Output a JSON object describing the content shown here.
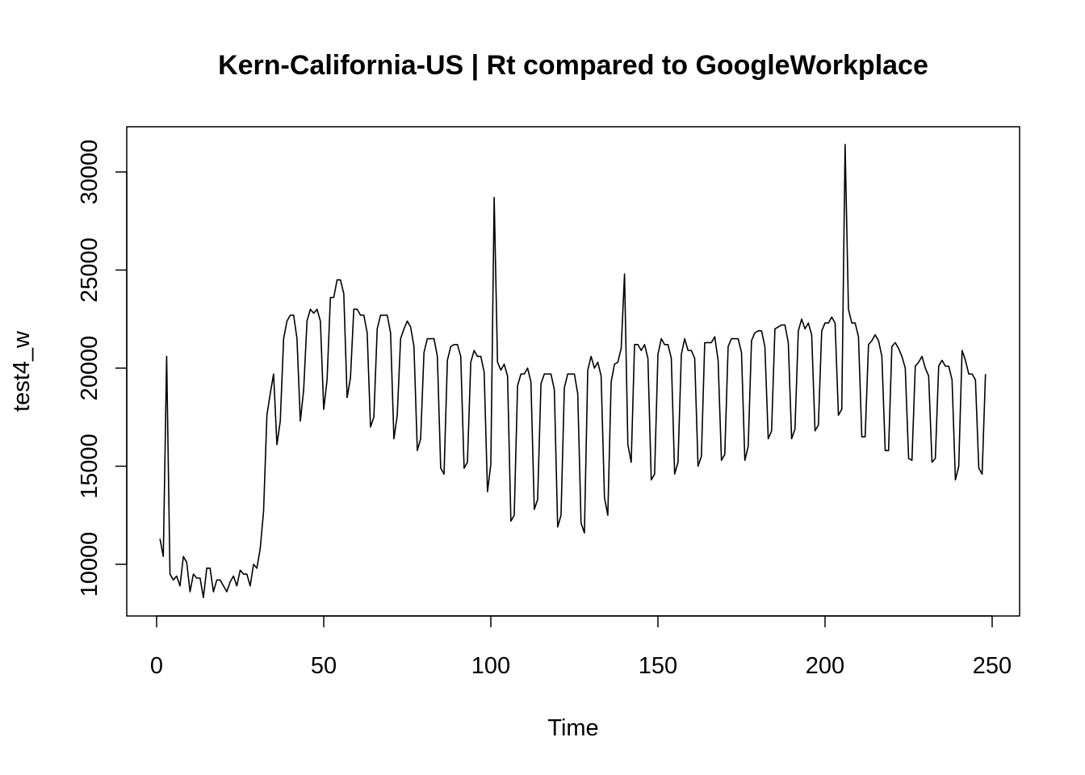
{
  "chart_data": {
    "type": "line",
    "title": "Kern-California-US | Rt compared to GoogleWorkplace",
    "xlabel": "Time",
    "ylabel": "test4_w",
    "xlim": [
      0,
      250
    ],
    "ylim": [
      8000,
      32000
    ],
    "xticks": [
      0,
      50,
      100,
      150,
      200,
      250
    ],
    "yticks": [
      10000,
      15000,
      20000,
      25000,
      30000
    ],
    "grid": false,
    "legend": "none",
    "line_color": "#000000",
    "series": [
      {
        "x_start": 1,
        "values": [
          11300,
          10400,
          20600,
          9500,
          9200,
          9400,
          8900,
          10400,
          10100,
          8600,
          9500,
          9300,
          9300,
          8300,
          9800,
          9800,
          8600,
          9200,
          9200,
          8900,
          8600,
          9100,
          9400,
          8900,
          9700,
          9500,
          9500,
          8900,
          10000,
          9800,
          10800,
          12700,
          17600,
          18700,
          19700,
          16100,
          17300,
          21500,
          22400,
          22700,
          22700,
          21500,
          17300,
          18900,
          22400,
          23000,
          22800,
          23000,
          22400,
          17900,
          19400,
          23600,
          23600,
          24500,
          24500,
          23800,
          18500,
          19500,
          23000,
          23000,
          22700,
          22700,
          21800,
          17000,
          17500,
          22000,
          22700,
          22700,
          22700,
          21800,
          16400,
          17600,
          21500,
          22000,
          22400,
          22100,
          21100,
          15800,
          16400,
          20800,
          21500,
          21500,
          21500,
          20600,
          14900,
          14600,
          20400,
          21100,
          21200,
          21200,
          20600,
          14900,
          15200,
          20300,
          20900,
          20600,
          20600,
          19800,
          13700,
          15100,
          28700,
          20300,
          19900,
          20200,
          19600,
          12200,
          12500,
          19100,
          19700,
          19700,
          20000,
          19300,
          12800,
          13300,
          19200,
          19700,
          19700,
          19700,
          18900,
          11900,
          12500,
          19000,
          19700,
          19700,
          19700,
          18700,
          12100,
          11600,
          19900,
          20600,
          20000,
          20300,
          19600,
          13400,
          12500,
          19300,
          20200,
          20300,
          21000,
          24800,
          16100,
          15200,
          21200,
          21200,
          20900,
          21200,
          20500,
          14300,
          14600,
          20700,
          21500,
          21200,
          21200,
          20500,
          14600,
          15200,
          20700,
          21500,
          20900,
          20900,
          20500,
          15000,
          15500,
          21300,
          21300,
          21300,
          21600,
          20400,
          15300,
          15600,
          21100,
          21500,
          21500,
          21500,
          20800,
          15300,
          16000,
          21400,
          21800,
          21900,
          21900,
          21100,
          16400,
          16800,
          22000,
          22100,
          22200,
          22200,
          21300,
          16400,
          16900,
          21900,
          22500,
          22000,
          22300,
          21700,
          16800,
          17100,
          21900,
          22300,
          22300,
          22600,
          22300,
          17600,
          17900,
          31400,
          23000,
          22300,
          22300,
          21600,
          16500,
          16500,
          21200,
          21400,
          21700,
          21400,
          20600,
          15800,
          15800,
          21100,
          21300,
          21000,
          20600,
          20000,
          15400,
          15300,
          20100,
          20300,
          20600,
          20000,
          19600,
          15200,
          15400,
          20100,
          20400,
          20100,
          20100,
          19400,
          14300,
          15000,
          20900,
          20400,
          19700,
          19700,
          19400,
          14900,
          14600,
          19700
        ]
      }
    ]
  }
}
